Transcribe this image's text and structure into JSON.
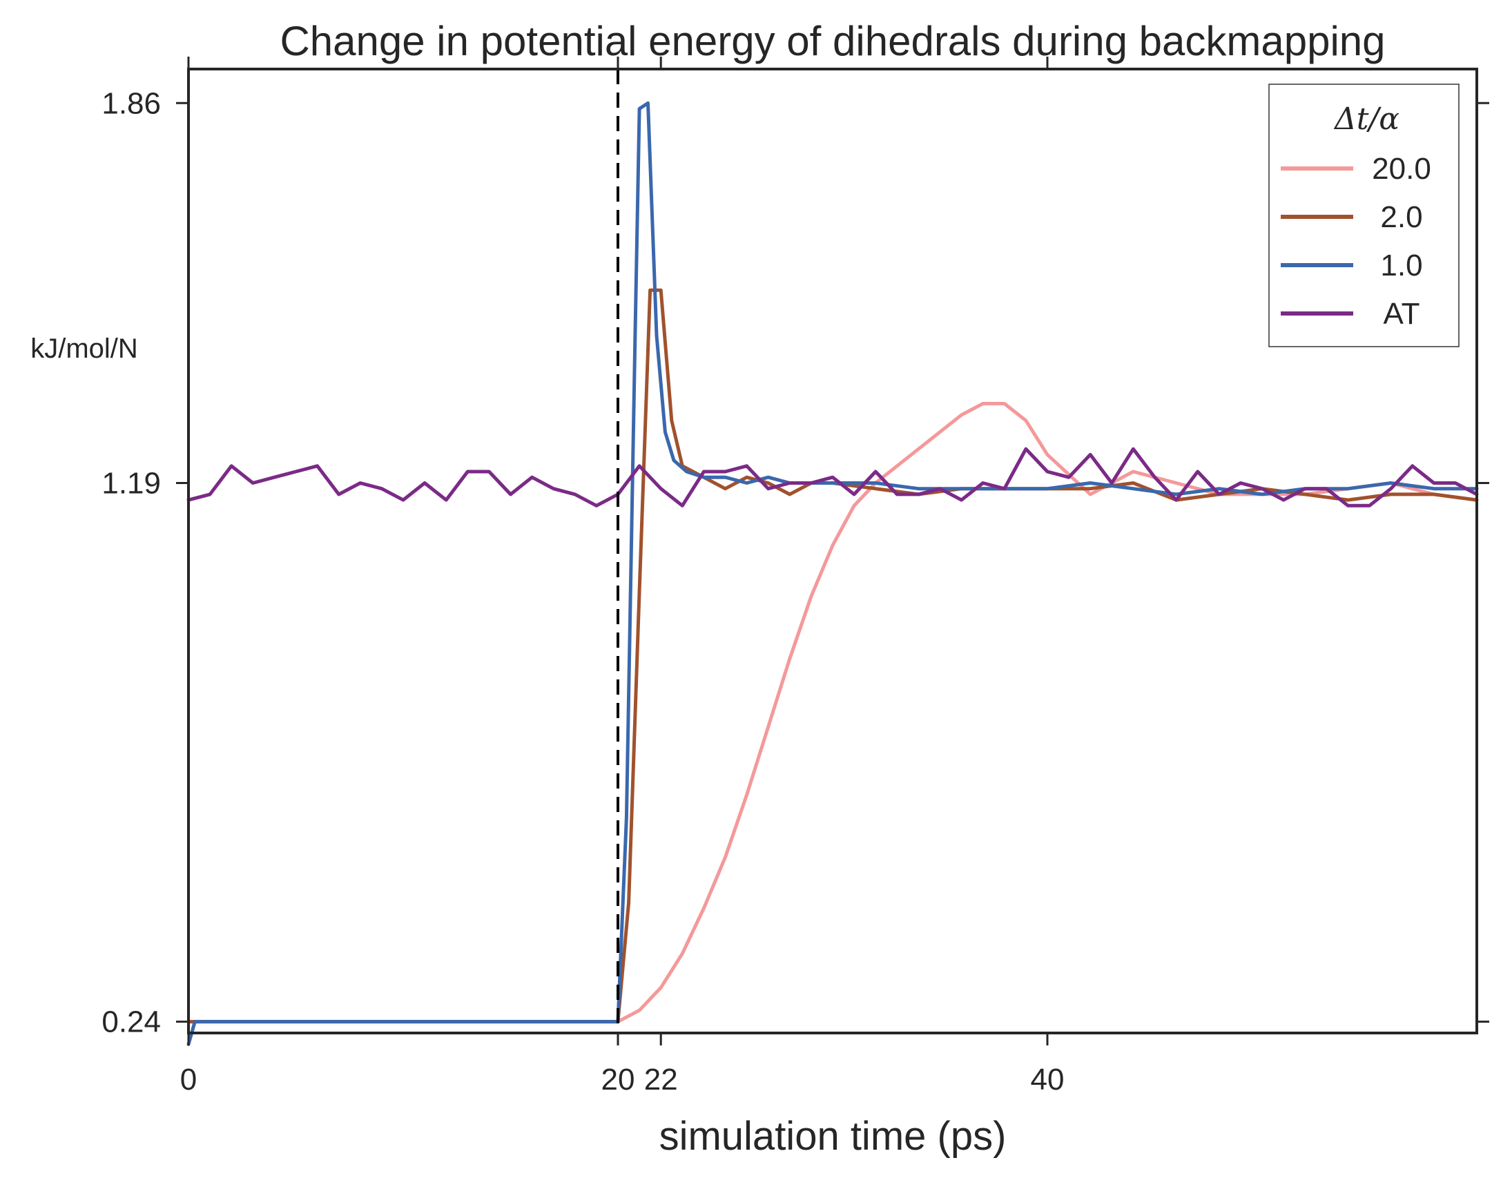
{
  "chart_data": {
    "type": "line",
    "title": "Change in potential energy of dihedrals during backmapping",
    "xlabel": "simulation time (ps)",
    "ylabel": "kJ/mol/N",
    "xlim": [
      0,
      60
    ],
    "ylim": [
      0.22,
      1.92
    ],
    "xticks": [
      0,
      20,
      22,
      40
    ],
    "xtick_labels": [
      "0",
      "20",
      "22",
      "40"
    ],
    "yticks": [
      0.24,
      1.19,
      1.86
    ],
    "ytick_labels": [
      "0.24",
      "1.19",
      "1.86"
    ],
    "vline_x": 20,
    "legend": {
      "title": "Δt/α",
      "position": "top-right"
    },
    "series": [
      {
        "name": "20.0",
        "color": "#f4999a",
        "x": [
          0,
          1,
          2,
          4,
          6,
          8,
          10,
          12,
          14,
          16,
          18,
          20,
          21,
          22,
          23,
          24,
          25,
          26,
          27,
          28,
          29,
          30,
          31,
          32,
          33,
          34,
          35,
          36,
          37,
          38,
          39,
          40,
          42,
          44,
          46,
          48,
          50,
          52,
          54,
          56,
          58,
          60
        ],
        "y": [
          0.24,
          0.24,
          0.24,
          0.24,
          0.24,
          0.24,
          0.24,
          0.24,
          0.24,
          0.24,
          0.24,
          0.24,
          0.26,
          0.3,
          0.36,
          0.44,
          0.53,
          0.64,
          0.76,
          0.88,
          0.99,
          1.08,
          1.15,
          1.19,
          1.22,
          1.25,
          1.28,
          1.31,
          1.33,
          1.33,
          1.3,
          1.24,
          1.17,
          1.21,
          1.19,
          1.17,
          1.17,
          1.17,
          1.18,
          1.19,
          1.17,
          1.16
        ]
      },
      {
        "name": "2.0",
        "color": "#a0522d",
        "x": [
          0,
          1,
          2,
          4,
          6,
          8,
          10,
          12,
          14,
          16,
          18,
          20,
          20.5,
          21,
          21.5,
          22,
          22.5,
          23,
          24,
          25,
          26,
          27,
          28,
          29,
          30,
          32,
          34,
          36,
          38,
          40,
          42,
          44,
          46,
          48,
          50,
          52,
          54,
          56,
          58,
          60
        ],
        "y": [
          0.24,
          0.24,
          0.24,
          0.24,
          0.24,
          0.24,
          0.24,
          0.24,
          0.24,
          0.24,
          0.24,
          0.24,
          0.45,
          1.0,
          1.53,
          1.53,
          1.3,
          1.22,
          1.2,
          1.18,
          1.2,
          1.19,
          1.17,
          1.19,
          1.19,
          1.18,
          1.17,
          1.18,
          1.18,
          1.18,
          1.18,
          1.19,
          1.16,
          1.17,
          1.18,
          1.17,
          1.16,
          1.17,
          1.17,
          1.16
        ]
      },
      {
        "name": "1.0",
        "color": "#3a68ad",
        "x": [
          0,
          0.3,
          1,
          2,
          4,
          6,
          8,
          10,
          12,
          14,
          16,
          18,
          20,
          20.4,
          20.8,
          21,
          21.4,
          21.8,
          22.2,
          22.6,
          23.2,
          24,
          25,
          26,
          27,
          28,
          30,
          32,
          34,
          36,
          38,
          40,
          42,
          44,
          46,
          48,
          50,
          52,
          54,
          56,
          58,
          60
        ],
        "y": [
          0.2,
          0.24,
          0.24,
          0.24,
          0.24,
          0.24,
          0.24,
          0.24,
          0.24,
          0.24,
          0.24,
          0.24,
          0.24,
          0.6,
          1.45,
          1.85,
          1.86,
          1.45,
          1.28,
          1.23,
          1.21,
          1.2,
          1.2,
          1.19,
          1.2,
          1.19,
          1.19,
          1.19,
          1.18,
          1.18,
          1.18,
          1.18,
          1.19,
          1.18,
          1.17,
          1.18,
          1.17,
          1.18,
          1.18,
          1.19,
          1.18,
          1.18
        ]
      },
      {
        "name": "AT",
        "color": "#7b2a87",
        "x": [
          0,
          1,
          2,
          3,
          4,
          5,
          6,
          7,
          8,
          9,
          10,
          11,
          12,
          13,
          14,
          15,
          16,
          17,
          18,
          19,
          20,
          21,
          22,
          23,
          24,
          25,
          26,
          27,
          28,
          29,
          30,
          31,
          32,
          33,
          34,
          35,
          36,
          37,
          38,
          39,
          40,
          41,
          42,
          43,
          44,
          45,
          46,
          47,
          48,
          49,
          50,
          51,
          52,
          53,
          54,
          55,
          56,
          57,
          58,
          59,
          60
        ],
        "y": [
          1.16,
          1.17,
          1.22,
          1.19,
          1.2,
          1.21,
          1.22,
          1.17,
          1.19,
          1.18,
          1.16,
          1.19,
          1.16,
          1.21,
          1.21,
          1.17,
          1.2,
          1.18,
          1.17,
          1.15,
          1.17,
          1.22,
          1.18,
          1.15,
          1.21,
          1.21,
          1.22,
          1.18,
          1.19,
          1.19,
          1.2,
          1.17,
          1.21,
          1.17,
          1.17,
          1.18,
          1.16,
          1.19,
          1.18,
          1.25,
          1.21,
          1.2,
          1.24,
          1.19,
          1.25,
          1.2,
          1.16,
          1.21,
          1.17,
          1.19,
          1.18,
          1.16,
          1.18,
          1.18,
          1.15,
          1.15,
          1.18,
          1.22,
          1.19,
          1.19,
          1.17
        ]
      }
    ]
  }
}
